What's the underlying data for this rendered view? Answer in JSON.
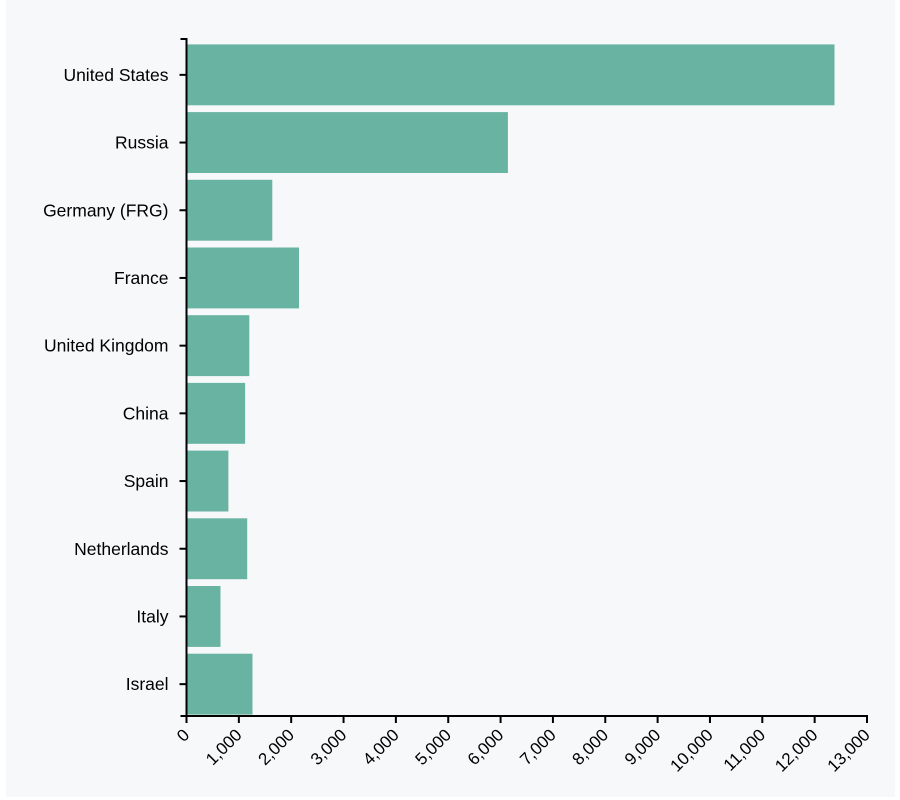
{
  "chart_data": {
    "type": "bar",
    "orientation": "horizontal",
    "title": "",
    "xlabel": "",
    "ylabel": "",
    "categories": [
      "United States",
      "Russia",
      "Germany (FRG)",
      "France",
      "United Kingdom",
      "China",
      "Spain",
      "Netherlands",
      "Italy",
      "Israel"
    ],
    "values": [
      12380,
      6140,
      1640,
      2150,
      1200,
      1120,
      800,
      1160,
      650,
      1260
    ],
    "xlim": [
      0,
      13000
    ],
    "x_ticks": [
      0,
      1000,
      2000,
      3000,
      4000,
      5000,
      6000,
      7000,
      8000,
      9000,
      10000,
      11000,
      12000,
      13000
    ],
    "x_tick_labels": [
      "0",
      "1,000",
      "2,000",
      "3,000",
      "4,000",
      "5,000",
      "6,000",
      "7,000",
      "8,000",
      "9,000",
      "10,000",
      "11,000",
      "12,000",
      "13,000"
    ],
    "grid": false,
    "legend": null,
    "colors": {
      "bar": "#69b3a2",
      "background": "#f7f8fa",
      "axis": "#000000"
    }
  }
}
